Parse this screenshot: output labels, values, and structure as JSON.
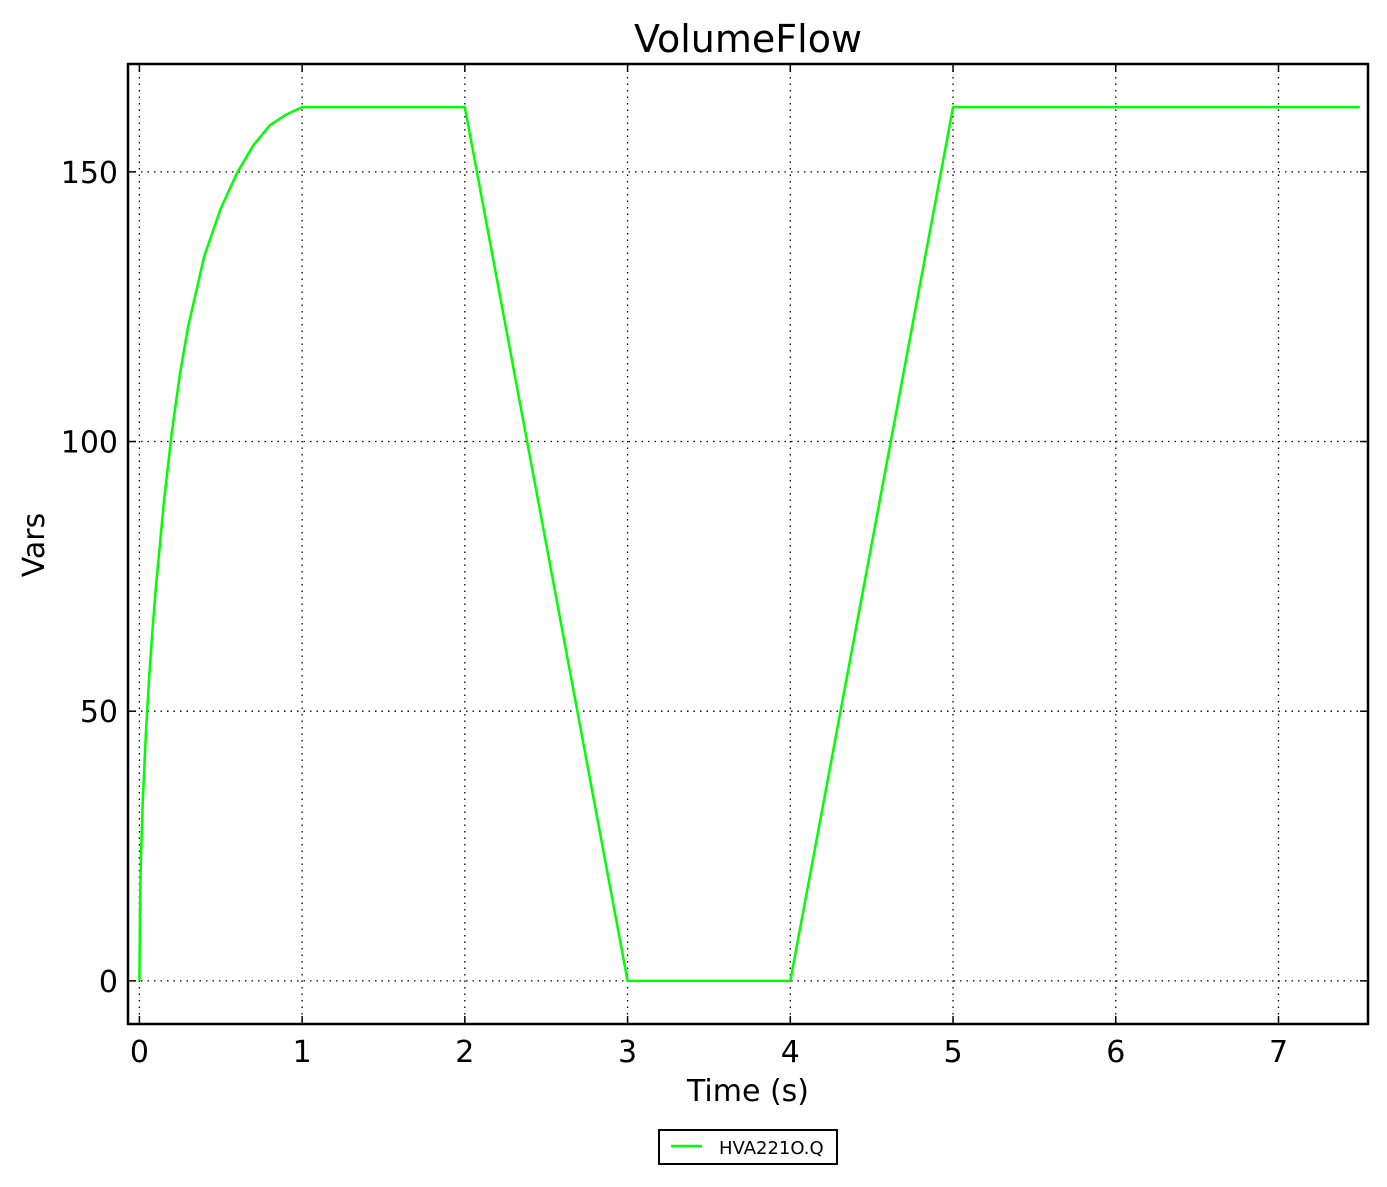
{
  "chart_data": {
    "type": "line",
    "title": "VolumeFlow",
    "xlabel": "Time (s)",
    "ylabel": "Vars",
    "xlim": [
      -0.07,
      7.55
    ],
    "ylim": [
      -8,
      170
    ],
    "xticks": [
      0,
      1,
      2,
      3,
      4,
      5,
      6,
      7
    ],
    "xtick_labels": [
      "0",
      "1",
      "2",
      "3",
      "4",
      "5",
      "6",
      "7"
    ],
    "yticks": [
      0,
      50,
      100,
      150
    ],
    "ytick_labels": [
      "0",
      "50",
      "100",
      "150"
    ],
    "grid": true,
    "grid_style": "dotted",
    "legend_position": "bottom-center, below the plot",
    "series": [
      {
        "name": "HVA221O.Q",
        "color": "#00ff00",
        "x": [
          0,
          0.005,
          0.01,
          0.02,
          0.04,
          0.06,
          0.08,
          0.1,
          0.15,
          0.2,
          0.25,
          0.3,
          0.4,
          0.5,
          0.6,
          0.7,
          0.8,
          0.9,
          1.0,
          2.0,
          2.2,
          2.4,
          2.6,
          2.8,
          3.0,
          4.0,
          4.2,
          4.4,
          4.6,
          4.8,
          5.0,
          7.5
        ],
        "y": [
          0,
          16.4,
          23.2,
          32.8,
          46.0,
          56.3,
          64.9,
          72.5,
          88.6,
          101.9,
          112.7,
          121.4,
          134.5,
          143.2,
          149.8,
          154.9,
          158.6,
          160.6,
          162,
          162,
          129.6,
          97.2,
          64.8,
          32.4,
          0,
          0,
          32.4,
          64.8,
          97.2,
          129.6,
          162,
          162
        ]
      }
    ]
  },
  "colors": {
    "series_line": "#00ff00",
    "axes": "#000000",
    "background": "#ffffff"
  }
}
